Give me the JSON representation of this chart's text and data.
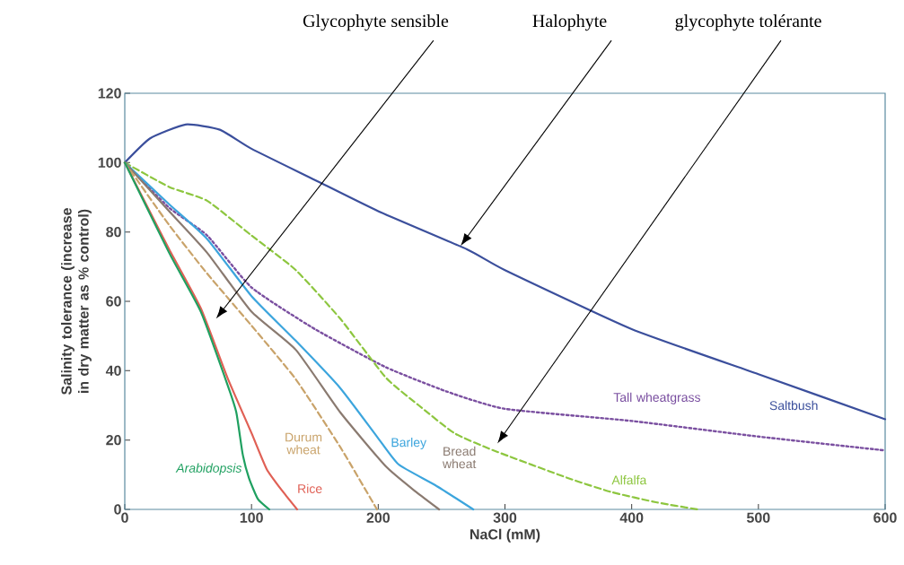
{
  "chart_data": {
    "type": "line",
    "xlabel": "NaCl (mM)",
    "ylabel": "Salinity tolerance (increase in dry matter as % control)",
    "xlim": [
      0,
      600
    ],
    "ylim": [
      0,
      120
    ],
    "xticks": [
      0,
      100,
      200,
      300,
      400,
      500,
      600
    ],
    "yticks": [
      0,
      20,
      40,
      60,
      80,
      100,
      120
    ],
    "grid": false,
    "legend": false,
    "series": [
      {
        "name": "Saltbush",
        "color": "#3b4f9c",
        "line_style": "solid",
        "x": [
          0,
          20,
          48,
          75,
          100,
          150,
          200,
          270,
          300,
          400,
          500,
          600
        ],
        "values": [
          100,
          107,
          111,
          109.5,
          104,
          95,
          86,
          75,
          69,
          52,
          39,
          26
        ]
      },
      {
        "name": "Tall wheatgrass",
        "color": "#7a4fa0",
        "line_style": "dotted",
        "x": [
          0,
          35,
          65,
          100,
          150,
          206,
          254,
          300,
          400,
          500,
          600
        ],
        "values": [
          100,
          87,
          79,
          64,
          52,
          41,
          34,
          29,
          25.5,
          21,
          17
        ]
      },
      {
        "name": "Alfalfa",
        "color": "#8dc63f",
        "line_style": "dashed",
        "x": [
          0,
          35,
          65,
          100,
          135,
          170,
          206,
          232,
          260,
          291,
          350,
          384,
          420,
          452
        ],
        "values": [
          100,
          93,
          89,
          79,
          69,
          55,
          38,
          30,
          22,
          17,
          9,
          5,
          2,
          0
        ]
      },
      {
        "name": "Barley",
        "color": "#3ca5dd",
        "line_style": "solid",
        "x": [
          0,
          35,
          65,
          100,
          135,
          170,
          199,
          216,
          245,
          275
        ],
        "values": [
          100,
          88,
          78,
          61.5,
          48.6,
          35,
          21,
          13,
          7,
          0
        ]
      },
      {
        "name": "Bread wheat",
        "color": "#8a7a70",
        "line_style": "solid",
        "x": [
          0,
          35,
          65,
          100,
          135,
          170,
          206,
          230,
          248
        ],
        "values": [
          100,
          86,
          74,
          57,
          46,
          28,
          12.4,
          5,
          0
        ]
      },
      {
        "name": "Durum wheat",
        "color": "#c9a36a",
        "line_style": "dashed",
        "x": [
          0,
          35,
          65,
          100,
          135,
          170,
          199
        ],
        "values": [
          100,
          82,
          68,
          53,
          37.5,
          18,
          0
        ]
      },
      {
        "name": "Rice",
        "color": "#e06055",
        "line_style": "solid",
        "x": [
          0,
          35,
          60,
          81,
          100,
          112,
          125,
          136
        ],
        "values": [
          100,
          75,
          58,
          38,
          22,
          11.6,
          5,
          0
        ]
      },
      {
        "name": "Arabidopsis",
        "color": "#1fa060",
        "line_style": "solid",
        "x": [
          0,
          35,
          60,
          81,
          88,
          93,
          98,
          105,
          114
        ],
        "values": [
          100,
          74,
          57,
          36,
          28,
          16,
          9,
          3,
          0
        ]
      }
    ],
    "annotations": [
      "Glycophyte sensible",
      "Halophyte",
      "glycophyte tolérante"
    ]
  }
}
